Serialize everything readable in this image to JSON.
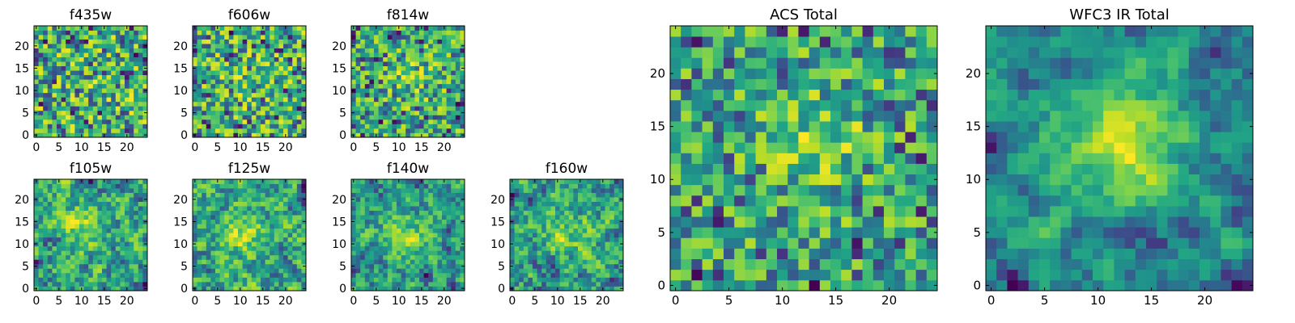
{
  "figure": {
    "colormap": "viridis",
    "tick_color": "#000000",
    "frame_color": "#000000"
  },
  "chart_data": [
    {
      "type": "heatmap",
      "id": "f435w",
      "title": "f435w",
      "grid_size": 25,
      "seed": 11,
      "smoothing": 0,
      "blob": {
        "cx": 12,
        "cy": 12,
        "strength": 0.05
      },
      "xticks": [
        "0",
        "5",
        "10",
        "15",
        "20"
      ],
      "yticks": [
        "0",
        "5",
        "10",
        "15",
        "20"
      ],
      "xlim": [
        -0.5,
        24.5
      ],
      "ylim": [
        -0.5,
        24.5
      ]
    },
    {
      "type": "heatmap",
      "id": "f606w",
      "title": "f606w",
      "grid_size": 25,
      "seed": 23,
      "smoothing": 0,
      "blob": {
        "cx": 12,
        "cy": 12,
        "strength": 0.1
      },
      "xticks": [
        "0",
        "5",
        "10",
        "15",
        "20"
      ],
      "yticks": [
        "0",
        "5",
        "10",
        "15",
        "20"
      ],
      "xlim": [
        -0.5,
        24.5
      ],
      "ylim": [
        -0.5,
        24.5
      ]
    },
    {
      "type": "heatmap",
      "id": "f814w",
      "title": "f814w",
      "grid_size": 25,
      "seed": 37,
      "smoothing": 0,
      "blob": {
        "cx": 13,
        "cy": 13,
        "strength": 0.2
      },
      "xticks": [
        "0",
        "5",
        "10",
        "15",
        "20"
      ],
      "yticks": [
        "0",
        "5",
        "10",
        "15",
        "20"
      ],
      "xlim": [
        -0.5,
        24.5
      ],
      "ylim": [
        -0.5,
        24.5
      ]
    },
    {
      "type": "heatmap",
      "id": "f105w",
      "title": "f105w",
      "grid_size": 25,
      "seed": 41,
      "smoothing": 1,
      "blob": {
        "cx": 11,
        "cy": 14,
        "strength": 0.25
      },
      "xticks": [
        "0",
        "5",
        "10",
        "15",
        "20"
      ],
      "yticks": [
        "0",
        "5",
        "10",
        "15",
        "20"
      ],
      "xlim": [
        -0.5,
        24.5
      ],
      "ylim": [
        -0.5,
        24.5
      ]
    },
    {
      "type": "heatmap",
      "id": "f125w",
      "title": "f125w",
      "grid_size": 25,
      "seed": 53,
      "smoothing": 1,
      "blob": {
        "cx": 10,
        "cy": 12,
        "strength": 0.25
      },
      "xticks": [
        "0",
        "5",
        "10",
        "15",
        "20"
      ],
      "yticks": [
        "0",
        "5",
        "10",
        "15",
        "20"
      ],
      "xlim": [
        -0.5,
        24.5
      ],
      "ylim": [
        -0.5,
        24.5
      ]
    },
    {
      "type": "heatmap",
      "id": "f140w",
      "title": "f140w",
      "grid_size": 25,
      "seed": 67,
      "smoothing": 1,
      "blob": {
        "cx": 12,
        "cy": 12,
        "strength": 0.3
      },
      "xticks": [
        "0",
        "5",
        "10",
        "15",
        "20"
      ],
      "yticks": [
        "0",
        "5",
        "10",
        "15",
        "20"
      ],
      "xlim": [
        -0.5,
        24.5
      ],
      "ylim": [
        -0.5,
        24.5
      ]
    },
    {
      "type": "heatmap",
      "id": "f160w",
      "title": "f160w",
      "grid_size": 25,
      "seed": 79,
      "smoothing": 1,
      "blob": {
        "cx": 12,
        "cy": 12,
        "strength": 0.3
      },
      "xticks": [
        "0",
        "5",
        "10",
        "15",
        "20"
      ],
      "yticks": [
        "0",
        "5",
        "10",
        "15",
        "20"
      ],
      "xlim": [
        -0.5,
        24.5
      ],
      "ylim": [
        -0.5,
        24.5
      ]
    },
    {
      "type": "heatmap",
      "id": "acs-total",
      "title": "ACS Total",
      "grid_size": 25,
      "seed": 97,
      "smoothing": 0,
      "blob": {
        "cx": 13,
        "cy": 14,
        "strength": 0.35
      },
      "xticks": [
        "0",
        "5",
        "10",
        "15",
        "20"
      ],
      "yticks": [
        "0",
        "5",
        "10",
        "15",
        "20"
      ],
      "xlim": [
        -0.5,
        24.5
      ],
      "ylim": [
        -0.5,
        24.5
      ]
    },
    {
      "type": "heatmap",
      "id": "wfc3-ir-total",
      "title": "WFC3 IR Total",
      "grid_size": 25,
      "seed": 131,
      "smoothing": 2,
      "blob": {
        "cx": 12,
        "cy": 13,
        "strength": 0.55
      },
      "xticks": [
        "0",
        "5",
        "10",
        "15",
        "20"
      ],
      "yticks": [
        "0",
        "5",
        "10",
        "15",
        "20"
      ],
      "xlim": [
        -0.5,
        24.5
      ],
      "ylim": [
        -0.5,
        24.5
      ]
    }
  ]
}
